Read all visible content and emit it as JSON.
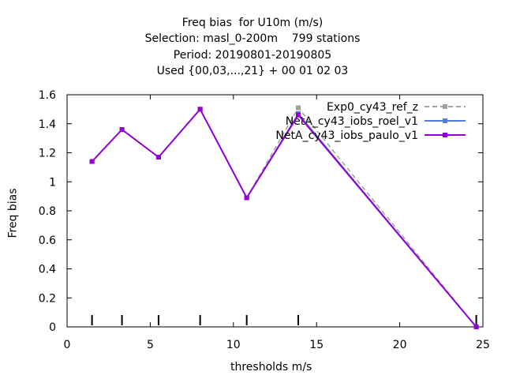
{
  "chart_data": {
    "type": "line",
    "title_lines": [
      "Freq bias  for U10m (m/s)",
      "Selection: masl_0-200m    799 stations",
      "Period: 20190801-20190805",
      "Used {00,03,...,21} + 00 01 02 03"
    ],
    "xlabel": "thresholds m/s",
    "ylabel": "Freq bias",
    "xlim": [
      0,
      25
    ],
    "ylim": [
      0,
      1.6
    ],
    "xticks": [
      0,
      5,
      10,
      15,
      20,
      25
    ],
    "yticks": [
      0,
      0.2,
      0.4,
      0.6,
      0.8,
      1,
      1.2,
      1.4,
      1.6
    ],
    "grid": false,
    "legend_position": "top-right",
    "threshold_markers": [
      1.5,
      3.3,
      5.5,
      8.0,
      10.8,
      13.9,
      24.6
    ],
    "series": [
      {
        "name": "Exp0_cy43_ref_z",
        "color": "#a0a0a0",
        "dashed": true,
        "x": [
          1.5,
          3.3,
          5.5,
          8.0,
          10.8,
          13.9,
          24.6
        ],
        "y": [
          1.14,
          1.36,
          1.17,
          1.5,
          0.89,
          1.51,
          0.0
        ]
      },
      {
        "name": "NetA_cy43_iobs_roel_v1",
        "color": "#4f7fd6",
        "dashed": false,
        "x": [
          1.5,
          3.3,
          5.5,
          8.0,
          10.8,
          13.9,
          24.6
        ],
        "y": [
          1.14,
          1.36,
          1.17,
          1.5,
          0.89,
          1.47,
          0.0
        ]
      },
      {
        "name": "NetA_cy43_iobs_paulo_v1",
        "color": "#9400d3",
        "dashed": false,
        "x": [
          1.5,
          3.3,
          5.5,
          8.0,
          10.8,
          13.9,
          24.6
        ],
        "y": [
          1.14,
          1.36,
          1.17,
          1.5,
          0.89,
          1.46,
          0.0
        ]
      }
    ]
  }
}
